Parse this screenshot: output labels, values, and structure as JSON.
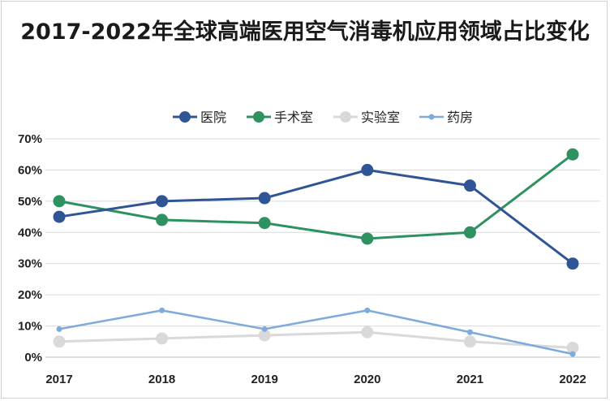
{
  "chart_data": {
    "type": "line",
    "title": "2017-2022年全球高端医用空气消毒机应用领域占比变化",
    "xlabel": "",
    "ylabel": "",
    "x": [
      "2017",
      "2018",
      "2019",
      "2020",
      "2021",
      "2022"
    ],
    "ylim": [
      0,
      70
    ],
    "yticks": [
      "0%",
      "10%",
      "20%",
      "30%",
      "40%",
      "50%",
      "60%",
      "70%"
    ],
    "grid": true,
    "legend_position": "top",
    "series": [
      {
        "name": "医院",
        "color": "#2f5597",
        "marker": "large",
        "values": [
          45,
          50,
          51,
          60,
          55,
          30
        ]
      },
      {
        "name": "手术室",
        "color": "#2e9160",
        "marker": "large",
        "values": [
          50,
          44,
          43,
          38,
          40,
          65
        ]
      },
      {
        "name": "实验室",
        "color": "#d9d9d9",
        "marker": "large",
        "values": [
          5,
          6,
          7,
          8,
          5,
          3
        ]
      },
      {
        "name": "药房",
        "color": "#7eaadc",
        "marker": "small",
        "values": [
          9,
          15,
          9,
          15,
          8,
          1
        ]
      }
    ]
  }
}
